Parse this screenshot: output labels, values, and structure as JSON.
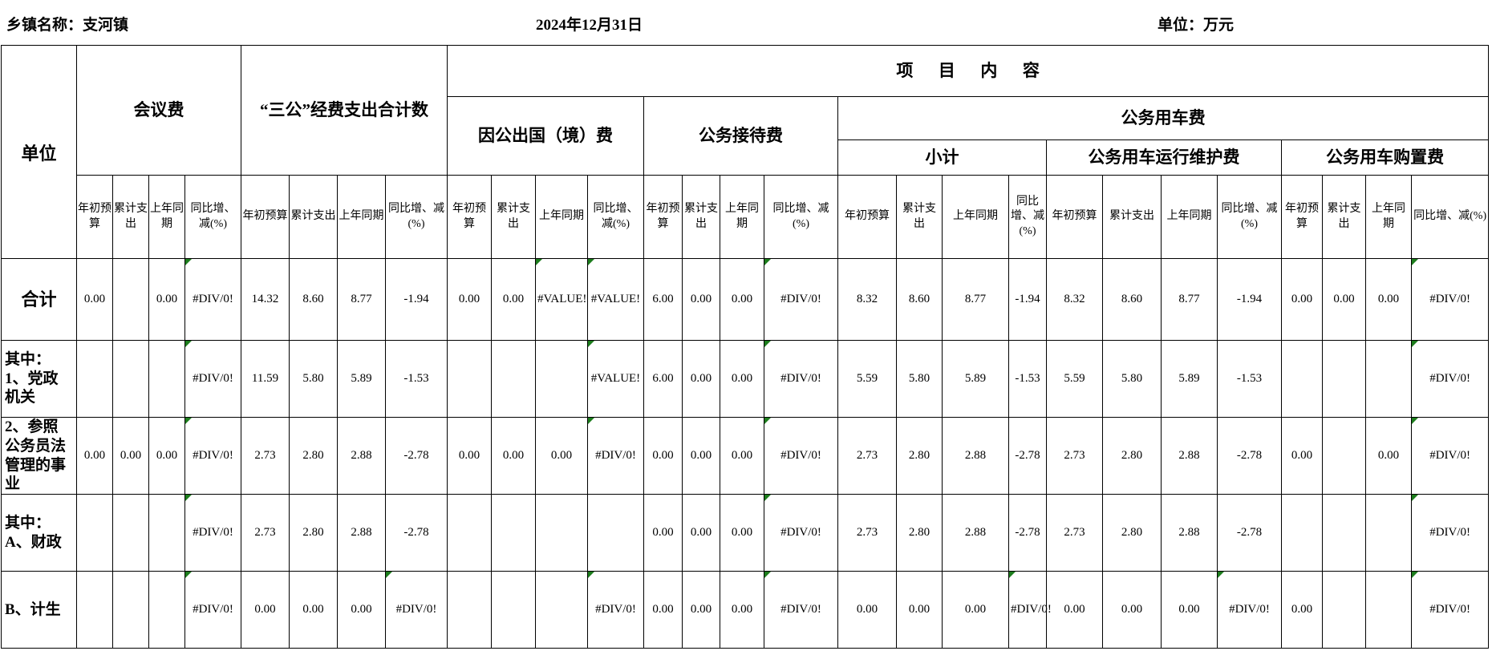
{
  "meta": {
    "township_label": "乡镇名称：支河镇",
    "date": "2024年12月31日",
    "unit_label": "单位：万元"
  },
  "table": {
    "corner": "单位",
    "top_group": "项目内容",
    "groups": {
      "meeting": "会议费",
      "three_public": "“三公”经费支出合计数",
      "abroad": "因公出国（境）费",
      "reception": "公务接待费",
      "vehicle": "公务用车费",
      "subtotal": "小计",
      "maintain": "公务用车运行维护费",
      "purchase": "公务用车购置费"
    },
    "leaf_labels": [
      "年初预算",
      "累计支出",
      "上年同期",
      "同比增、减(%)"
    ],
    "rows": [
      {
        "label": "合计",
        "total": true,
        "values": [
          "0.00",
          "",
          "0.00",
          "#DIV/0!",
          "14.32",
          "8.60",
          "8.77",
          "-1.94",
          "0.00",
          "0.00",
          "#VALUE!",
          "#VALUE!",
          "6.00",
          "0.00",
          "0.00",
          "#DIV/0!",
          "8.32",
          "8.60",
          "8.77",
          "-1.94",
          "8.32",
          "8.60",
          "8.77",
          "-1.94",
          "0.00",
          "0.00",
          "0.00",
          "#DIV/0!"
        ]
      },
      {
        "label": "其中：1、党政机关",
        "total": false,
        "values": [
          "",
          "",
          "",
          "#DIV/0!",
          "11.59",
          "5.80",
          "5.89",
          "-1.53",
          "",
          "",
          "",
          "#VALUE!",
          "6.00",
          "0.00",
          "0.00",
          "#DIV/0!",
          "5.59",
          "5.80",
          "5.89",
          "-1.53",
          "5.59",
          "5.80",
          "5.89",
          "-1.53",
          "",
          "",
          "",
          "#DIV/0!"
        ]
      },
      {
        "label": "2、参照公务员法管理的事业",
        "total": false,
        "values": [
          "0.00",
          "0.00",
          "0.00",
          "#DIV/0!",
          "2.73",
          "2.80",
          "2.88",
          "-2.78",
          "0.00",
          "0.00",
          "0.00",
          "#DIV/0!",
          "0.00",
          "0.00",
          "0.00",
          "#DIV/0!",
          "2.73",
          "2.80",
          "2.88",
          "-2.78",
          "2.73",
          "2.80",
          "2.88",
          "-2.78",
          "0.00",
          "",
          "0.00",
          "#DIV/0!"
        ]
      },
      {
        "label": "其中：A、财政",
        "total": false,
        "values": [
          "",
          "",
          "",
          "#DIV/0!",
          "2.73",
          "2.80",
          "2.88",
          "-2.78",
          "",
          "",
          "",
          "",
          "0.00",
          "0.00",
          "0.00",
          "#DIV/0!",
          "2.73",
          "2.80",
          "2.88",
          "-2.78",
          "2.73",
          "2.80",
          "2.88",
          "-2.78",
          "",
          "",
          "",
          "#DIV/0!"
        ]
      },
      {
        "label": "B、计生",
        "total": false,
        "values": [
          "",
          "",
          "",
          "#DIV/0!",
          "0.00",
          "0.00",
          "0.00",
          "#DIV/0!",
          "",
          "",
          "",
          "#DIV/0!",
          "0.00",
          "0.00",
          "0.00",
          "#DIV/0!",
          "0.00",
          "0.00",
          "0.00",
          "#DIV/0!",
          "0.00",
          "0.00",
          "0.00",
          "#DIV/0!",
          "0.00",
          "",
          "",
          "#DIV/0!"
        ]
      }
    ]
  }
}
